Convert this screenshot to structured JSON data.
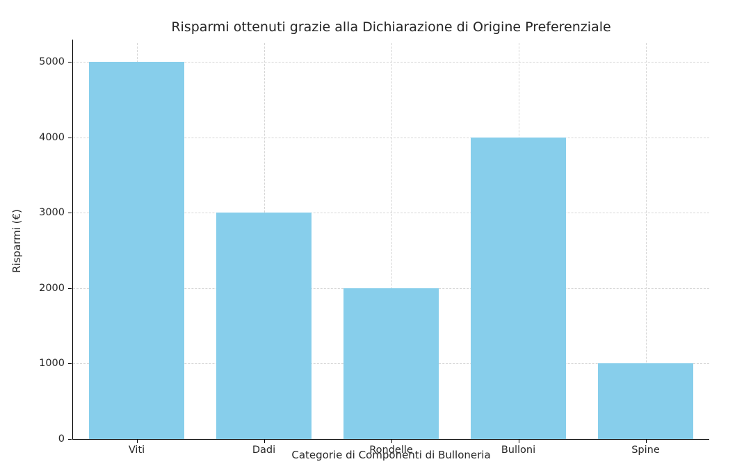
{
  "chart_data": {
    "type": "bar",
    "title": "Risparmi ottenuti grazie alla Dichiarazione di Origine Preferenziale",
    "xlabel": "Categorie di Componenti di Bulloneria",
    "ylabel": "Risparmi (€)",
    "categories": [
      "Viti",
      "Dadi",
      "Rondelle",
      "Bulloni",
      "Spine"
    ],
    "values": [
      5000,
      3000,
      2000,
      4000,
      1000
    ],
    "ylim": [
      0,
      5250
    ],
    "yticks": [
      0,
      1000,
      2000,
      3000,
      4000,
      5000
    ],
    "bar_color": "#87CEEB",
    "grid": "dashed",
    "legend_position": "none"
  }
}
